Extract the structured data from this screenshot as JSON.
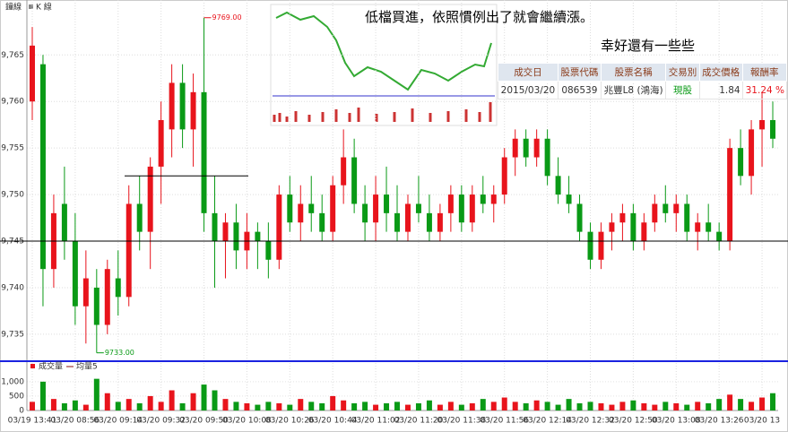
{
  "chart_data": {
    "type": "candlestick",
    "tab_labels": [
      "鐘線",
      "K 線"
    ],
    "categories": [
      "03/19 13:41",
      null,
      null,
      null,
      "03/20 08:56",
      null,
      null,
      null,
      "03/20 09:14",
      null,
      null,
      null,
      "03/20 09:32",
      null,
      null,
      null,
      "03/20 09:50",
      null,
      null,
      null,
      "03/20 10:08",
      null,
      null,
      null,
      "03/20 10:26",
      null,
      null,
      null,
      "03/20 10:44",
      null,
      null,
      null,
      "03/20 11:02",
      null,
      null,
      null,
      "03/20 11:20",
      null,
      null,
      null,
      "03/20 11:38",
      null,
      null,
      null,
      "03/20 11:56",
      null,
      null,
      null,
      "03/20 12:14",
      null,
      null,
      null,
      "03/20 12:32",
      null,
      null,
      null,
      "03/20 12:50",
      null,
      null,
      null,
      "03/20 13:08",
      null,
      null,
      null,
      "03/20 13:26",
      null,
      null,
      null,
      "03/20 13",
      null
    ],
    "open": [
      9760,
      9764,
      9742,
      9749,
      9745,
      9738,
      9740,
      9736,
      9741,
      9739,
      9749,
      9746,
      9753,
      9757,
      9762,
      9757,
      9761,
      9748,
      9745,
      9747,
      9744,
      9746,
      9745,
      9743,
      9750,
      9747,
      9749,
      9748,
      9746,
      9751,
      9754,
      9749,
      9747,
      9750,
      9748,
      9746,
      9749,
      9748,
      9746,
      9748,
      9750,
      9747,
      9750,
      9749,
      9750,
      9754,
      9756,
      9754,
      9756,
      9752,
      9750,
      9749,
      9746,
      9743,
      9746,
      9747,
      9748,
      9745,
      9747,
      9749,
      9748,
      9749,
      9746,
      9747,
      9746,
      9745,
      9755,
      9752,
      9757,
      9758
    ],
    "high": [
      9768,
      9765,
      9750,
      9753,
      9748,
      9744,
      9742,
      9743,
      9744,
      9751,
      9752,
      9754,
      9760,
      9764,
      9764,
      9763,
      9769,
      9752,
      9748,
      9749,
      9748,
      9747,
      9747,
      9751,
      9752,
      9751,
      9752,
      9750,
      9752,
      9757,
      9756,
      9751,
      9752,
      9753,
      9751,
      9750,
      9752,
      9750,
      9749,
      9751,
      9751,
      9751,
      9752,
      9751,
      9755,
      9757,
      9757,
      9757,
      9757,
      9754,
      9752,
      9750,
      9747,
      9747,
      9748,
      9749,
      9749,
      9748,
      9750,
      9751,
      9750,
      9750,
      9748,
      9749,
      9747,
      9756,
      9757,
      9758,
      9761,
      9760
    ],
    "low": [
      9758,
      9738,
      9740,
      9743,
      9736,
      9734,
      9733,
      9735,
      9737,
      9738,
      9744,
      9742,
      9749,
      9754,
      9755,
      9753,
      9746,
      9740,
      9741,
      9742,
      9742,
      9742,
      9741,
      9742,
      9746,
      9745,
      9746,
      9745,
      9745,
      9749,
      9748,
      9745,
      9745,
      9746,
      9745,
      9745,
      9747,
      9745,
      9745,
      9746,
      9746,
      9746,
      9748,
      9747,
      9749,
      9752,
      9753,
      9753,
      9751,
      9749,
      9748,
      9745,
      9742,
      9742,
      9744,
      9745,
      9744,
      9744,
      9746,
      9747,
      9746,
      9745,
      9744,
      9745,
      9744,
      9744,
      9751,
      9750,
      9753,
      9755
    ],
    "close": [
      9766,
      9742,
      9748,
      9745,
      9738,
      9741,
      9736,
      9742,
      9739,
      9749,
      9746,
      9753,
      9758,
      9762,
      9757,
      9761,
      9748,
      9745,
      9747,
      9744,
      9746,
      9745,
      9743,
      9750,
      9747,
      9749,
      9748,
      9746,
      9751,
      9754,
      9749,
      9747,
      9750,
      9748,
      9746,
      9749,
      9748,
      9746,
      9748,
      9750,
      9747,
      9750,
      9749,
      9750,
      9754,
      9756,
      9754,
      9756,
      9752,
      9750,
      9749,
      9746,
      9743,
      9746,
      9747,
      9748,
      9745,
      9747,
      9749,
      9748,
      9749,
      9746,
      9747,
      9746,
      9745,
      9755,
      9752,
      9757,
      9758,
      9756
    ],
    "up_color": "#e8141c",
    "down_color": "#0a9a16",
    "ylim": [
      9732.1,
      9770.9
    ],
    "yticks": [
      {
        "value": 9735,
        "label": "9,735"
      },
      {
        "value": 9740,
        "label": "9,740"
      },
      {
        "value": 9745,
        "label": "9,745"
      },
      {
        "value": 9750,
        "label": "9,750"
      },
      {
        "value": 9755,
        "label": "9,755"
      },
      {
        "value": 9760,
        "label": "9,760"
      },
      {
        "value": 9765,
        "label": "9,765"
      }
    ],
    "grid": true,
    "high_label": {
      "value": 9769,
      "label": "9769.00"
    },
    "low_label": {
      "value": 9733,
      "label": "9733.00"
    },
    "hlines": [
      {
        "value": 9745,
        "color": "#000000"
      },
      {
        "value": 9752,
        "color": "#000000"
      }
    ],
    "volume": {
      "legend": [
        "成交量",
        "均量5"
      ],
      "values": [
        300,
        1000,
        400,
        250,
        350,
        200,
        1100,
        600,
        300,
        400,
        250,
        500,
        300,
        700,
        250,
        600,
        900,
        700,
        400,
        300,
        250,
        200,
        300,
        250,
        200,
        400,
        300,
        250,
        500,
        350,
        250,
        300,
        200,
        250,
        300,
        200,
        250,
        350,
        200,
        300,
        200,
        250,
        400,
        300,
        450,
        300,
        250,
        350,
        300,
        200,
        400,
        250,
        300,
        250,
        200,
        300,
        350,
        250,
        200,
        300,
        250,
        200,
        300,
        250,
        400,
        550,
        400,
        300,
        450,
        600
      ],
      "ylim": [
        0,
        1400
      ],
      "yticks": [
        0,
        500,
        {
          "value": 1000,
          "label": "1,000"
        }
      ]
    }
  },
  "overlay": {
    "comment": "低檔買進，依照慣例出了就會繼續漲。",
    "comment2": "幸好還有一些些",
    "table": {
      "headers": [
        "成交日",
        "股票代碼",
        "股票名稱",
        "交易別",
        "成交價格",
        "報酬率"
      ],
      "rows": [
        [
          "2015/03/20",
          "086539",
          "兆豐L8 (鴻海)",
          "現股",
          "1.84",
          "31.24 %"
        ]
      ]
    }
  }
}
